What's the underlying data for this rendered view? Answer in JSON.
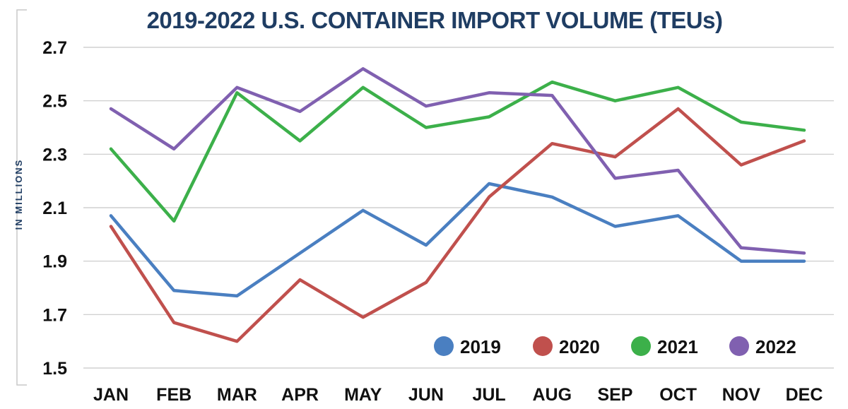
{
  "chart_data": {
    "type": "line",
    "title": "2019-2022 U.S. CONTAINER IMPORT VOLUME (TEUs)",
    "ylabel": "IN MILLIONS",
    "xlabel": "",
    "categories": [
      "JAN",
      "FEB",
      "MAR",
      "APR",
      "MAY",
      "JUN",
      "JUL",
      "AUG",
      "SEP",
      "OCT",
      "NOV",
      "DEC"
    ],
    "yticks": [
      "1.5",
      "1.7",
      "1.9",
      "2.1",
      "2.3",
      "2.5",
      "2.7"
    ],
    "ylim": [
      1.5,
      2.7
    ],
    "grid": "horizontal",
    "legend_position": "bottom-right",
    "series": [
      {
        "name": "2019",
        "color": "#4a7fc1",
        "values": [
          2.07,
          1.79,
          1.77,
          1.93,
          2.09,
          1.96,
          2.19,
          2.14,
          2.03,
          2.07,
          1.9,
          1.9
        ]
      },
      {
        "name": "2020",
        "color": "#c0504d",
        "values": [
          2.03,
          1.67,
          1.6,
          1.83,
          1.69,
          1.82,
          2.14,
          2.34,
          2.29,
          2.47,
          2.26,
          2.35
        ]
      },
      {
        "name": "2021",
        "color": "#3cb04a",
        "values": [
          2.32,
          2.05,
          2.53,
          2.35,
          2.55,
          2.4,
          2.44,
          2.57,
          2.5,
          2.55,
          2.42,
          2.39
        ]
      },
      {
        "name": "2022",
        "color": "#8060b0",
        "values": [
          2.47,
          2.32,
          2.55,
          2.46,
          2.62,
          2.48,
          2.53,
          2.52,
          2.21,
          2.24,
          1.95,
          1.93
        ]
      }
    ]
  }
}
